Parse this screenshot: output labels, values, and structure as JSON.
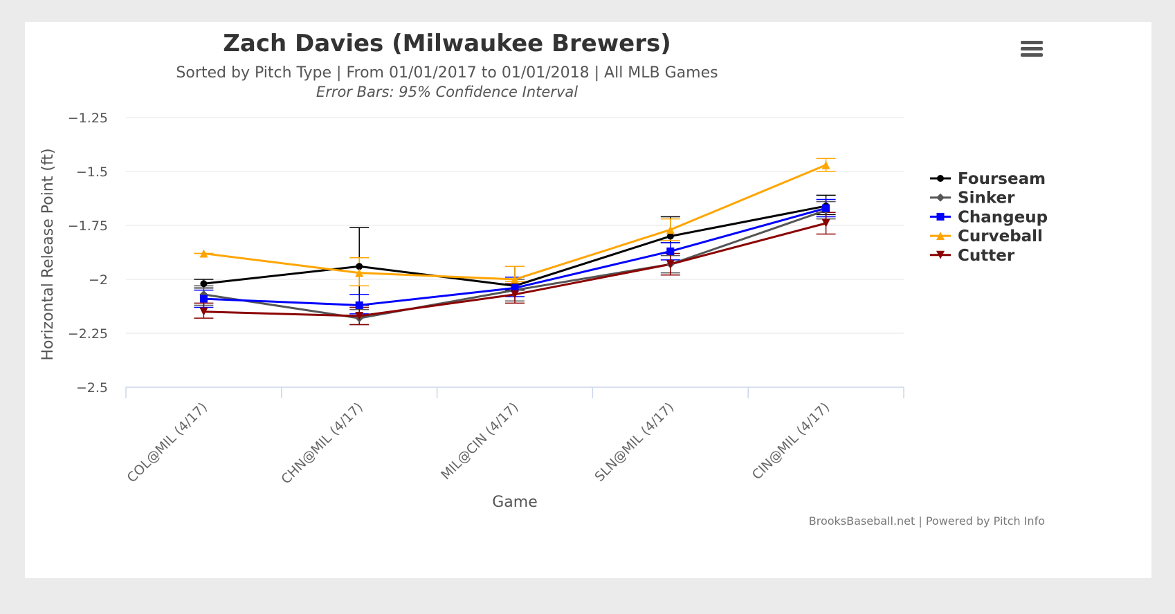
{
  "chart_data": {
    "type": "line",
    "title": "Zach Davies (Milwaukee Brewers)",
    "subtitle": "Sorted by Pitch Type | From 01/01/2017 to 01/01/2018 | All MLB Games",
    "subtitle2": "Error Bars: 95% Confidence Interval",
    "xlabel": "Game",
    "ylabel": "Horizontal Release Point (ft)",
    "categories": [
      "COL@MIL (4/17)",
      "CHN@MIL (4/17)",
      "MIL@CIN (4/17)",
      "SLN@MIL (4/17)",
      "CIN@MIL (4/17)"
    ],
    "ylim": [
      -2.5,
      -1.25
    ],
    "yticks": [
      -1.25,
      -1.5,
      -1.75,
      -2,
      -2.25,
      -2.5
    ],
    "ytick_labels": [
      "−1.25",
      "−1.5",
      "−1.75",
      "−2",
      "−2.25",
      "−2.5"
    ],
    "grid": true,
    "legend_position": "right",
    "series": [
      {
        "name": "Fourseam",
        "color": "#000000",
        "marker": "circle",
        "values": [
          -2.02,
          -1.94,
          -2.03,
          -1.8,
          -1.66
        ],
        "err_low": [
          -2.04,
          -2.12,
          -2.05,
          -1.83,
          -1.7
        ],
        "err_high": [
          -2.0,
          -1.76,
          -1.94,
          -1.71,
          -1.61
        ]
      },
      {
        "name": "Sinker",
        "color": "#555555",
        "marker": "diamond",
        "values": [
          -2.07,
          -2.18,
          -2.05,
          -1.93,
          -1.68
        ],
        "err_low": [
          -2.12,
          -2.21,
          -2.1,
          -1.97,
          -1.72
        ],
        "err_high": [
          -2.03,
          -2.14,
          -2.0,
          -1.89,
          -1.64
        ]
      },
      {
        "name": "Changeup",
        "color": "#0000ff",
        "marker": "square",
        "values": [
          -2.09,
          -2.12,
          -2.04,
          -1.87,
          -1.67
        ],
        "err_low": [
          -2.13,
          -2.16,
          -2.08,
          -1.91,
          -1.71
        ],
        "err_high": [
          -2.05,
          -2.07,
          -1.99,
          -1.83,
          -1.63
        ]
      },
      {
        "name": "Curveball",
        "color": "#ffa500",
        "marker": "triangle",
        "values": [
          -1.88,
          -1.97,
          -2.0,
          -1.77,
          -1.47
        ],
        "err_low": [
          -1.88,
          -2.03,
          -2.01,
          -1.82,
          -1.5
        ],
        "err_high": [
          -1.88,
          -1.9,
          -1.94,
          -1.72,
          -1.44
        ]
      },
      {
        "name": "Cutter",
        "color": "#8b0000",
        "marker": "triangle-down",
        "values": [
          -2.15,
          -2.17,
          -2.07,
          -1.93,
          -1.74
        ],
        "err_low": [
          -2.18,
          -2.21,
          -2.11,
          -1.98,
          -1.79
        ],
        "err_high": [
          -2.11,
          -2.13,
          -2.02,
          -1.88,
          -1.69
        ]
      }
    ],
    "credits": "BrooksBaseball.net | Powered by Pitch Info"
  },
  "colors": {
    "page_background": "#ebebeb",
    "chart_background": "#ffffff",
    "grid": "#e6e6e6",
    "x_axis": "#ccd6eb"
  },
  "menu_icon": "hamburger-menu-icon"
}
